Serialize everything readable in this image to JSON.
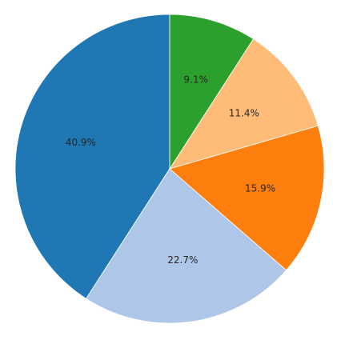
{
  "chart_data": {
    "type": "pie",
    "values": [
      40.9,
      22.7,
      15.9,
      11.4,
      9.1
    ],
    "value_labels": [
      "40.9%",
      "22.7%",
      "15.9%",
      "11.4%",
      "9.1%"
    ],
    "colors": [
      "#1f77b4",
      "#aec7e8",
      "#ff7f0e",
      "#ffbb78",
      "#2ca02c"
    ]
  }
}
